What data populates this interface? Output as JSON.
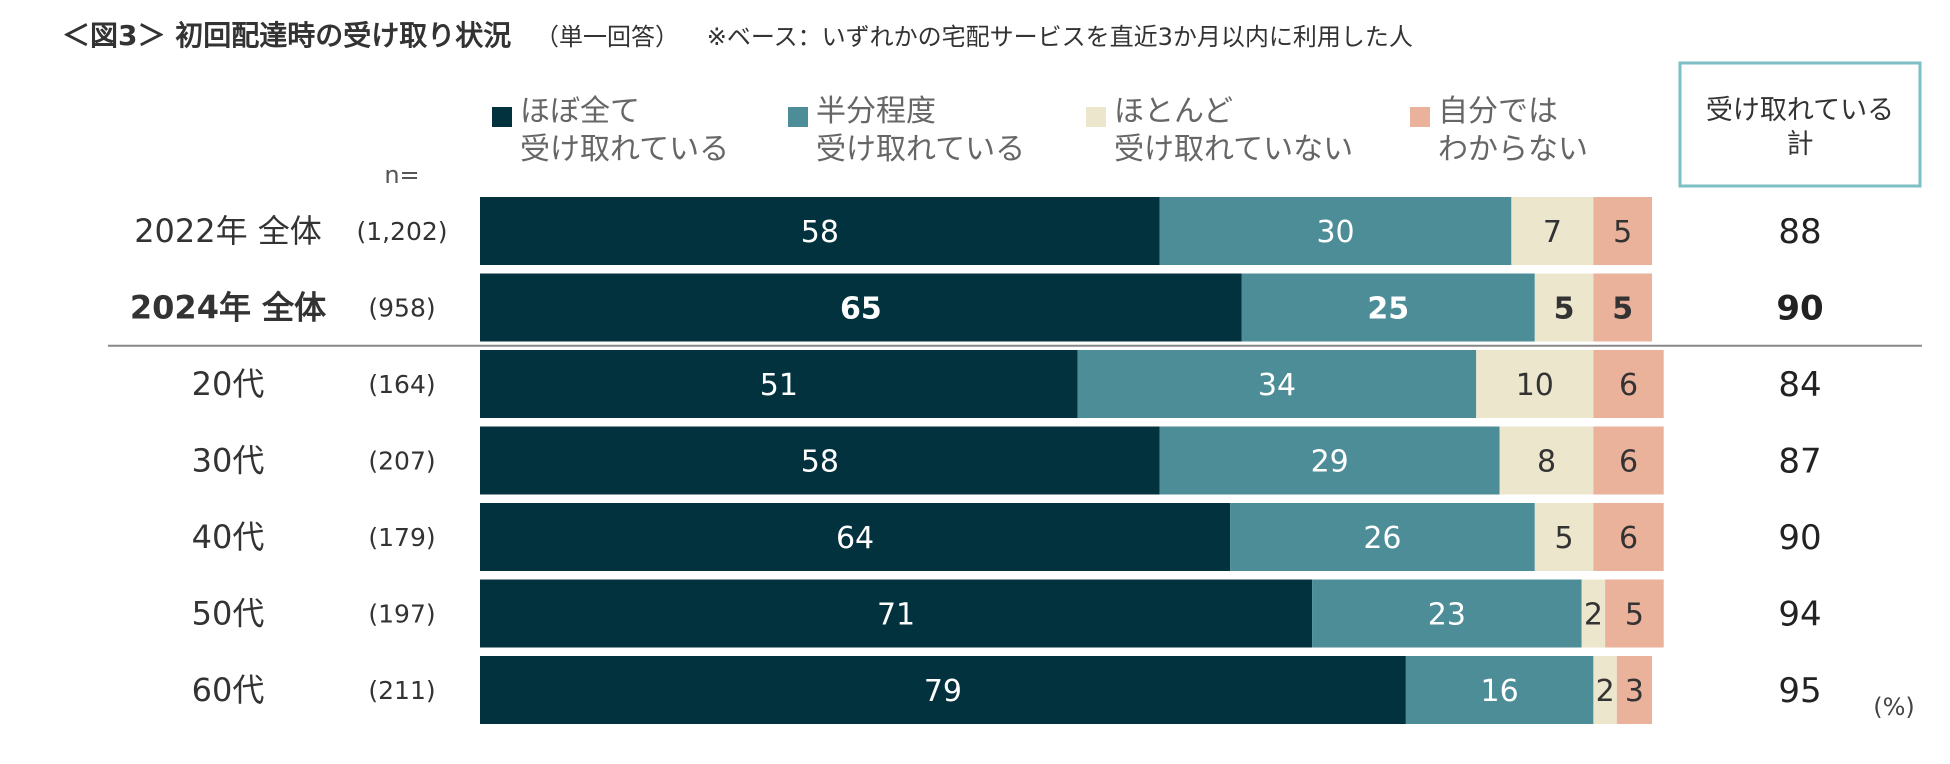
{
  "title": "＜図3＞ 初回配達時の受け取り状況",
  "subtitle": "（単一回答）",
  "note": "※ベース：いずれかの宅配サービスを直近3か月以内に利用した人",
  "n_header": "n=",
  "unit_label": "(%)",
  "total_header": [
    "受け取れている",
    "計"
  ],
  "colors": {
    "series": [
      "#03323f",
      "#4d8d98",
      "#ebe6cc",
      "#ebb29b"
    ],
    "total_box_border": "#7dbfc4",
    "divider": "#888888"
  },
  "chart_data": {
    "type": "bar",
    "stacked": true,
    "orientation": "horizontal",
    "unit": "%",
    "legend_position": "top",
    "series": [
      {
        "name": [
          "ほぼ全て",
          "受け取れている"
        ],
        "values": [
          58,
          65,
          51,
          58,
          64,
          71,
          79
        ]
      },
      {
        "name": [
          "半分程度",
          "受け取れている"
        ],
        "values": [
          30,
          25,
          34,
          29,
          26,
          23,
          16
        ]
      },
      {
        "name": [
          "ほとんど",
          "受け取れていない"
        ],
        "values": [
          7,
          5,
          10,
          8,
          5,
          2,
          2
        ]
      },
      {
        "name": [
          "自分では",
          "わからない"
        ],
        "values": [
          5,
          5,
          6,
          6,
          6,
          5,
          3
        ]
      }
    ],
    "rows": [
      {
        "label": "2022年 全体",
        "n": "(1,202)",
        "total": 88,
        "bold": false
      },
      {
        "label": "2024年 全体",
        "n": "(958)",
        "total": 90,
        "bold": true
      },
      {
        "label": "20代",
        "n": "(164)",
        "total": 84,
        "bold": false
      },
      {
        "label": "30代",
        "n": "(207)",
        "total": 87,
        "bold": false
      },
      {
        "label": "40代",
        "n": "(179)",
        "total": 90,
        "bold": false
      },
      {
        "label": "50代",
        "n": "(197)",
        "total": 94,
        "bold": false
      },
      {
        "label": "60代",
        "n": "(211)",
        "total": 95,
        "bold": false
      }
    ],
    "divider_after_row": 1
  }
}
